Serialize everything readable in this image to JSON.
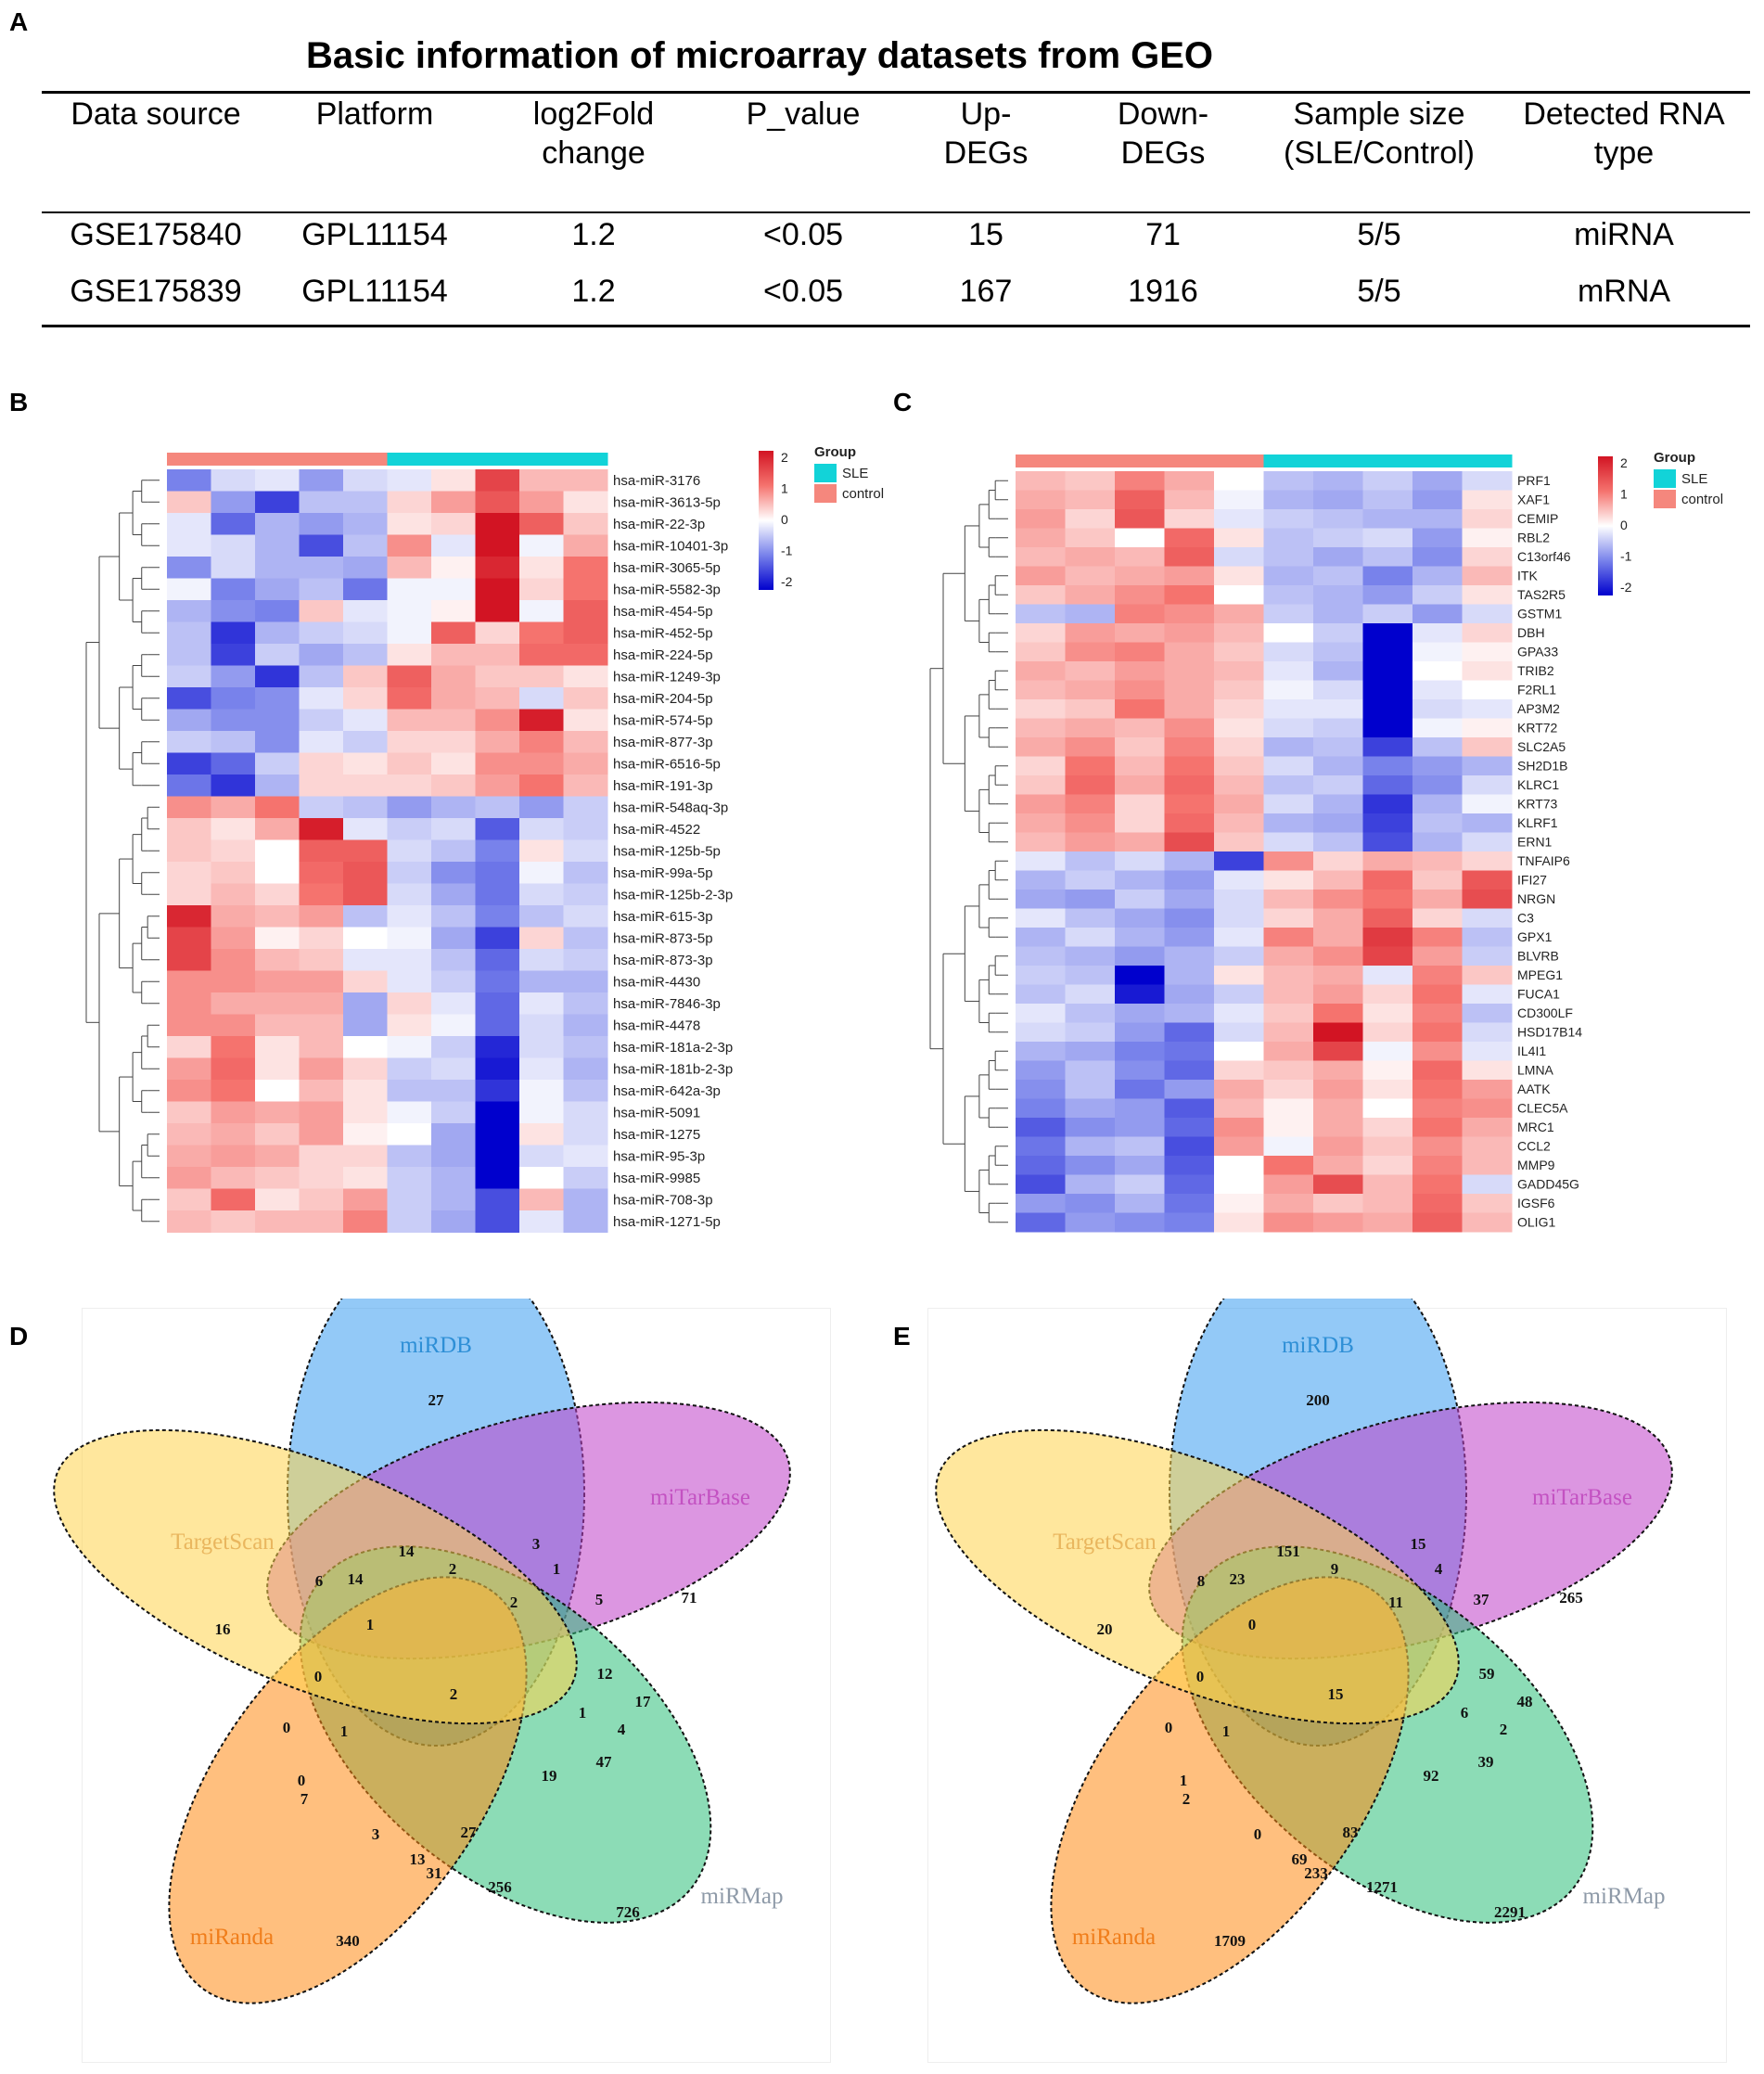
{
  "panel_labels": {
    "A": "A",
    "B": "B",
    "C": "C",
    "D": "D",
    "E": "E"
  },
  "table": {
    "title": "Basic information of microarray datasets from GEO",
    "headers": [
      [
        "Data source"
      ],
      [
        "Platform"
      ],
      [
        "log2Fold",
        "change"
      ],
      [
        "P_value"
      ],
      [
        "Up-",
        "DEGs"
      ],
      [
        "Down-",
        "DEGs"
      ],
      [
        "Sample size",
        "(SLE/Control)"
      ],
      [
        "Detected RNA",
        "type"
      ]
    ],
    "rows": [
      [
        "GSE175840",
        "GPL11154",
        "1.2",
        "<0.05",
        "15",
        "71",
        "5/5",
        "miRNA"
      ],
      [
        "GSE175839",
        "GPL11154",
        "1.2",
        "<0.05",
        "167",
        "1916",
        "5/5",
        "mRNA"
      ]
    ]
  },
  "heatmap_B": {
    "group_colors": {
      "control": "#F5877D",
      "SLE": "#12D3D8"
    },
    "legend": {
      "title": "Group",
      "items": [
        "SLE",
        "control"
      ],
      "ticks": [
        "2",
        "1",
        "0",
        "-1",
        "-2"
      ]
    },
    "rows": [
      "hsa-miR-3176",
      "hsa-miR-3613-5p",
      "hsa-miR-22-3p",
      "hsa-miR-10401-3p",
      "hsa-miR-3065-5p",
      "hsa-miR-5582-3p",
      "hsa-miR-454-5p",
      "hsa-miR-452-5p",
      "hsa-miR-224-5p",
      "hsa-miR-1249-3p",
      "hsa-miR-204-5p",
      "hsa-miR-574-5p",
      "hsa-miR-877-3p",
      "hsa-miR-6516-5p",
      "hsa-miR-191-3p",
      "hsa-miR-548aq-3p",
      "hsa-miR-4522",
      "hsa-miR-125b-5p",
      "hsa-miR-99a-5p",
      "hsa-miR-125b-2-3p",
      "hsa-miR-615-3p",
      "hsa-miR-873-5p",
      "hsa-miR-873-3p",
      "hsa-miR-4430",
      "hsa-miR-7846-3p",
      "hsa-miR-4478",
      "hsa-miR-181a-2-3p",
      "hsa-miR-181b-2-3p",
      "hsa-miR-642a-3p",
      "hsa-miR-5091",
      "hsa-miR-1275",
      "hsa-miR-95-3p",
      "hsa-miR-9985",
      "hsa-miR-708-3p",
      "hsa-miR-1271-5p"
    ],
    "matrix": [
      [
        -1,
        -0.3,
        -0.2,
        -0.8,
        -0.3,
        -0.2,
        0.2,
        1.5,
        0.5,
        0.5
      ],
      [
        0.4,
        -0.8,
        -1.5,
        -0.5,
        -0.5,
        0.3,
        0.7,
        1.3,
        0.7,
        0.2
      ],
      [
        -0.2,
        -1.2,
        -0.6,
        -0.8,
        -0.6,
        0.2,
        0.3,
        2.0,
        1.2,
        0.4
      ],
      [
        -0.2,
        -0.3,
        -0.6,
        -1.4,
        -0.5,
        0.8,
        -0.2,
        2.0,
        -0.1,
        0.6
      ],
      [
        -0.9,
        -0.3,
        -0.6,
        -0.6,
        -0.7,
        0.5,
        0.1,
        1.8,
        0.2,
        1.0
      ],
      [
        -0.1,
        -1.0,
        -0.7,
        -0.5,
        -1.1,
        -0.1,
        -0.1,
        2.0,
        0.3,
        1.0
      ],
      [
        -0.6,
        -0.9,
        -1.0,
        0.4,
        -0.2,
        -0.1,
        0.1,
        2.0,
        -0.1,
        1.2
      ],
      [
        -0.5,
        -1.6,
        -0.6,
        -0.4,
        -0.3,
        -0.1,
        1.2,
        0.3,
        1.0,
        1.2
      ],
      [
        -0.5,
        -1.5,
        -0.4,
        -0.7,
        -0.5,
        0.2,
        0.5,
        0.5,
        1.1,
        1.1
      ],
      [
        -0.4,
        -0.8,
        -1.6,
        -0.5,
        0.4,
        1.2,
        0.6,
        0.4,
        0.4,
        0.2
      ],
      [
        -1.4,
        -1.0,
        -0.9,
        -0.2,
        0.3,
        1.1,
        0.6,
        0.5,
        -0.3,
        0.4
      ],
      [
        -0.7,
        -0.9,
        -0.9,
        -0.4,
        -0.2,
        0.5,
        0.5,
        0.8,
        1.9,
        0.2
      ],
      [
        -0.4,
        -0.5,
        -0.9,
        -0.2,
        -0.4,
        0.3,
        0.3,
        0.6,
        0.9,
        0.5
      ],
      [
        -1.5,
        -1.2,
        -0.4,
        0.3,
        0.2,
        0.4,
        0.2,
        0.8,
        0.8,
        0.6
      ],
      [
        -1.1,
        -1.6,
        -0.6,
        0.3,
        0.3,
        0.3,
        0.4,
        0.7,
        1.0,
        0.5
      ],
      [
        0.8,
        0.6,
        1.0,
        -0.4,
        -0.5,
        -0.8,
        -0.6,
        -0.5,
        -0.8,
        -0.4
      ],
      [
        0.4,
        0.2,
        0.6,
        1.9,
        -0.2,
        -0.4,
        -0.3,
        -1.3,
        -0.3,
        -0.4
      ],
      [
        0.4,
        0.3,
        0.0,
        1.2,
        1.2,
        -0.3,
        -0.5,
        -1.0,
        0.2,
        -0.3
      ],
      [
        0.3,
        0.4,
        0.0,
        1.1,
        1.3,
        -0.4,
        -0.9,
        -1.1,
        -0.1,
        -0.5
      ],
      [
        0.3,
        0.5,
        0.3,
        1.0,
        1.3,
        -0.3,
        -0.7,
        -1.1,
        -0.3,
        -0.4
      ],
      [
        1.8,
        0.6,
        0.5,
        0.7,
        -0.5,
        -0.2,
        -0.5,
        -1.0,
        -0.5,
        -0.3
      ],
      [
        1.5,
        0.7,
        0.1,
        0.3,
        0.0,
        -0.1,
        -0.7,
        -1.5,
        0.3,
        -0.5
      ],
      [
        1.5,
        0.8,
        0.5,
        0.4,
        -0.2,
        -0.2,
        -0.5,
        -1.2,
        -0.3,
        -0.4
      ],
      [
        0.8,
        0.8,
        0.7,
        0.7,
        0.3,
        -0.2,
        -0.4,
        -1.1,
        -0.6,
        -0.6
      ],
      [
        0.8,
        0.6,
        0.6,
        0.6,
        -0.7,
        0.3,
        -0.2,
        -1.2,
        -0.2,
        -0.5
      ],
      [
        0.8,
        0.8,
        0.5,
        0.5,
        -0.7,
        0.2,
        -0.1,
        -1.2,
        -0.3,
        -0.6
      ],
      [
        0.3,
        1.0,
        0.2,
        0.5,
        0.0,
        -0.1,
        -0.4,
        -1.7,
        -0.3,
        -0.5
      ],
      [
        0.7,
        1.1,
        0.2,
        0.7,
        0.3,
        -0.4,
        -0.3,
        -1.8,
        -0.2,
        -0.6
      ],
      [
        0.8,
        1.0,
        0.0,
        0.5,
        0.2,
        -0.5,
        -0.5,
        -1.6,
        -0.1,
        -0.5
      ],
      [
        0.4,
        0.7,
        0.6,
        0.7,
        0.2,
        -0.1,
        -0.4,
        -2.0,
        -0.1,
        -0.3
      ],
      [
        0.5,
        0.6,
        0.4,
        0.7,
        0.1,
        0.0,
        -0.7,
        -2.0,
        0.2,
        -0.3
      ],
      [
        0.6,
        0.7,
        0.6,
        0.3,
        0.3,
        -0.5,
        -0.7,
        -2.0,
        -0.3,
        -0.2
      ],
      [
        0.7,
        0.5,
        0.4,
        0.3,
        0.2,
        -0.4,
        -0.6,
        -2.0,
        0.0,
        -0.4
      ],
      [
        0.4,
        1.1,
        0.2,
        0.4,
        0.7,
        -0.4,
        -0.6,
        -1.4,
        0.5,
        -0.6
      ],
      [
        0.5,
        0.4,
        0.5,
        0.5,
        0.9,
        -0.4,
        -0.7,
        -1.4,
        -0.2,
        -0.6
      ]
    ]
  },
  "heatmap_C": {
    "group_colors": {
      "control": "#F5877D",
      "SLE": "#12D3D8"
    },
    "legend": {
      "title": "Group",
      "items": [
        "SLE",
        "control"
      ],
      "ticks": [
        "2",
        "1",
        "0",
        "-1",
        "-2"
      ]
    },
    "rows": [
      "PRF1",
      "XAF1",
      "CEMIP",
      "RBL2",
      "C13orf46",
      "ITK",
      "TAS2R5",
      "GSTM1",
      "DBH",
      "GPA33",
      "TRIB2",
      "F2RL1",
      "AP3M2",
      "KRT72",
      "SLC2A5",
      "SH2D1B",
      "KLRC1",
      "KRT73",
      "KLRF1",
      "ERN1",
      "TNFAIP6",
      "IFI27",
      "NRGN",
      "C3",
      "GPX1",
      "BLVRB",
      "MPEG1",
      "FUCA1",
      "CD300LF",
      "HSD17B14",
      "IL4I1",
      "LMNA",
      "AATK",
      "CLEC5A",
      "MRC1",
      "CCL2",
      "MMP9",
      "GADD45G",
      "IGSF6",
      "OLIG1"
    ],
    "matrix": [
      [
        0.5,
        0.4,
        0.9,
        0.6,
        0.0,
        -0.5,
        -0.6,
        -0.4,
        -0.7,
        -0.3
      ],
      [
        0.6,
        0.5,
        1.2,
        0.5,
        -0.1,
        -0.6,
        -0.7,
        -0.5,
        -0.8,
        0.2
      ],
      [
        0.7,
        0.3,
        1.3,
        0.3,
        -0.2,
        -0.4,
        -0.5,
        -0.6,
        -0.6,
        0.3
      ],
      [
        0.6,
        0.4,
        0.0,
        1.1,
        0.2,
        -0.5,
        -0.4,
        -0.3,
        -0.8,
        0.1
      ],
      [
        0.5,
        0.6,
        0.5,
        1.2,
        -0.3,
        -0.5,
        -0.7,
        -0.5,
        -0.9,
        0.3
      ],
      [
        0.7,
        0.5,
        0.6,
        0.7,
        0.2,
        -0.6,
        -0.5,
        -1.0,
        -0.6,
        0.5
      ],
      [
        0.4,
        0.6,
        0.8,
        1.0,
        0.0,
        -0.5,
        -0.6,
        -0.8,
        -0.4,
        0.2
      ],
      [
        -0.5,
        -0.6,
        0.9,
        0.8,
        0.6,
        -0.4,
        -0.6,
        -0.4,
        -0.8,
        -0.3
      ],
      [
        0.3,
        0.7,
        0.6,
        0.7,
        0.5,
        0.0,
        -0.4,
        -2.0,
        -0.2,
        0.3
      ],
      [
        0.4,
        0.8,
        0.9,
        0.6,
        0.4,
        -0.3,
        -0.5,
        -2.0,
        -0.1,
        0.1
      ],
      [
        0.6,
        0.5,
        0.7,
        0.6,
        0.5,
        -0.2,
        -0.6,
        -2.0,
        0.0,
        0.2
      ],
      [
        0.5,
        0.6,
        0.8,
        0.6,
        0.4,
        -0.1,
        -0.3,
        -2.0,
        -0.2,
        0.0
      ],
      [
        0.3,
        0.4,
        1.0,
        0.6,
        0.3,
        -0.2,
        -0.2,
        -2.0,
        -0.3,
        -0.2
      ],
      [
        0.5,
        0.6,
        0.5,
        0.8,
        0.2,
        -0.3,
        -0.4,
        -2.0,
        -0.1,
        0.1
      ],
      [
        0.6,
        0.8,
        0.4,
        0.9,
        0.3,
        -0.6,
        -0.5,
        -1.5,
        -0.5,
        0.4
      ],
      [
        0.3,
        1.0,
        0.5,
        1.0,
        0.4,
        -0.3,
        -0.6,
        -1.0,
        -0.8,
        -0.6
      ],
      [
        0.4,
        1.1,
        0.6,
        1.1,
        0.5,
        -0.5,
        -0.4,
        -1.2,
        -0.9,
        -0.3
      ],
      [
        0.7,
        0.9,
        0.3,
        1.0,
        0.6,
        -0.3,
        -0.6,
        -1.6,
        -0.6,
        -0.1
      ],
      [
        0.6,
        0.8,
        0.3,
        1.1,
        0.5,
        -0.6,
        -0.7,
        -1.5,
        -0.5,
        -0.6
      ],
      [
        0.5,
        0.7,
        0.6,
        1.4,
        0.4,
        -0.3,
        -0.5,
        -1.4,
        -0.6,
        -0.3
      ],
      [
        -0.2,
        -0.5,
        -0.3,
        -0.6,
        -1.5,
        0.8,
        0.3,
        0.6,
        0.5,
        0.3
      ],
      [
        -0.6,
        -0.4,
        -0.6,
        -0.8,
        -0.2,
        0.2,
        0.5,
        1.1,
        0.4,
        1.3
      ],
      [
        -0.7,
        -0.8,
        -0.4,
        -0.7,
        -0.3,
        0.5,
        0.8,
        1.0,
        0.6,
        1.4
      ],
      [
        -0.2,
        -0.5,
        -0.7,
        -0.9,
        -0.3,
        0.3,
        0.6,
        1.2,
        0.3,
        -0.3
      ],
      [
        -0.6,
        -0.3,
        -0.6,
        -0.8,
        -0.2,
        0.9,
        0.6,
        1.6,
        0.9,
        -0.5
      ],
      [
        -0.5,
        -0.6,
        -0.8,
        -0.6,
        -0.4,
        0.6,
        0.8,
        1.5,
        0.7,
        -0.4
      ],
      [
        -0.4,
        -0.5,
        -2.0,
        -0.6,
        0.2,
        0.5,
        0.6,
        -0.2,
        0.9,
        0.4
      ],
      [
        -0.5,
        -0.3,
        -1.8,
        -0.7,
        -0.4,
        0.5,
        0.7,
        0.3,
        1.0,
        -0.2
      ],
      [
        -0.2,
        -0.5,
        -0.7,
        -0.6,
        -0.2,
        0.4,
        1.0,
        0.2,
        0.9,
        -0.5
      ],
      [
        -0.3,
        -0.4,
        -0.8,
        -1.2,
        -0.3,
        0.5,
        2.0,
        0.3,
        1.0,
        -0.3
      ],
      [
        -0.6,
        -0.7,
        -1.0,
        -1.1,
        0.0,
        0.6,
        1.5,
        -0.1,
        0.8,
        -0.2
      ],
      [
        -0.8,
        -0.5,
        -0.9,
        -1.2,
        0.3,
        0.4,
        0.6,
        0.1,
        1.1,
        0.2
      ],
      [
        -0.9,
        -0.5,
        -1.1,
        -0.8,
        0.6,
        0.3,
        0.7,
        0.2,
        1.0,
        0.7
      ],
      [
        -1.0,
        -0.7,
        -0.8,
        -1.3,
        0.5,
        0.1,
        0.6,
        0.0,
        0.9,
        0.8
      ],
      [
        -1.3,
        -0.9,
        -0.8,
        -1.2,
        0.8,
        0.1,
        0.6,
        0.3,
        1.0,
        0.6
      ],
      [
        -1.1,
        -0.6,
        -0.5,
        -1.4,
        0.7,
        -0.1,
        0.7,
        0.4,
        0.8,
        0.5
      ],
      [
        -1.2,
        -0.9,
        -0.7,
        -1.3,
        0.0,
        1.0,
        0.6,
        0.3,
        0.9,
        0.5
      ],
      [
        -1.4,
        -0.6,
        -0.4,
        -1.2,
        0.0,
        0.7,
        1.4,
        0.5,
        1.0,
        -0.3
      ],
      [
        -0.8,
        -0.9,
        -0.6,
        -1.1,
        0.1,
        0.6,
        0.4,
        0.5,
        1.1,
        0.4
      ],
      [
        -1.2,
        -0.8,
        -0.9,
        -1.0,
        0.2,
        0.8,
        0.7,
        0.6,
        1.2,
        0.5
      ]
    ]
  },
  "venn_D": {
    "sets": [
      {
        "name": "miRDB",
        "fill": "#3A9CF0",
        "label_color": "#2E8FD6"
      },
      {
        "name": "miTarBase",
        "fill": "#C040C8",
        "label_color": "#C352C2"
      },
      {
        "name": "miRMap",
        "fill": "#2EC07A",
        "label_color": "#8E9AA8"
      },
      {
        "name": "miRanda",
        "fill": "#FF8A14",
        "label_color": "#F07D1A"
      },
      {
        "name": "TargetScan",
        "fill": "#FFD44D",
        "label_color": "#E9B65E"
      }
    ],
    "counts": [
      "27",
      "71",
      "726",
      "340",
      "16",
      "14",
      "3",
      "1",
      "5",
      "12",
      "17",
      "47",
      "4",
      "19",
      "256",
      "31",
      "13",
      "3",
      "7",
      "0",
      "0",
      "6",
      "14",
      "1",
      "2",
      "2",
      "1",
      "0",
      "1",
      "2",
      "27"
    ]
  },
  "venn_E": {
    "sets": [
      {
        "name": "miRDB",
        "fill": "#3A9CF0",
        "label_color": "#2E8FD6"
      },
      {
        "name": "miTarBase",
        "fill": "#C040C8",
        "label_color": "#C352C2"
      },
      {
        "name": "miRMap",
        "fill": "#2EC07A",
        "label_color": "#8E9AA8"
      },
      {
        "name": "miRanda",
        "fill": "#FF8A14",
        "label_color": "#F07D1A"
      },
      {
        "name": "TargetScan",
        "fill": "#FFD44D",
        "label_color": "#E9B65E"
      }
    ],
    "counts": [
      "200",
      "265",
      "2291",
      "1709",
      "20",
      "151",
      "15",
      "4",
      "37",
      "59",
      "48",
      "39",
      "2",
      "92",
      "1271",
      "233",
      "69",
      "0",
      "2",
      "1",
      "0",
      "8",
      "23",
      "0",
      "9",
      "11",
      "6",
      "0",
      "1",
      "15",
      "83"
    ]
  }
}
